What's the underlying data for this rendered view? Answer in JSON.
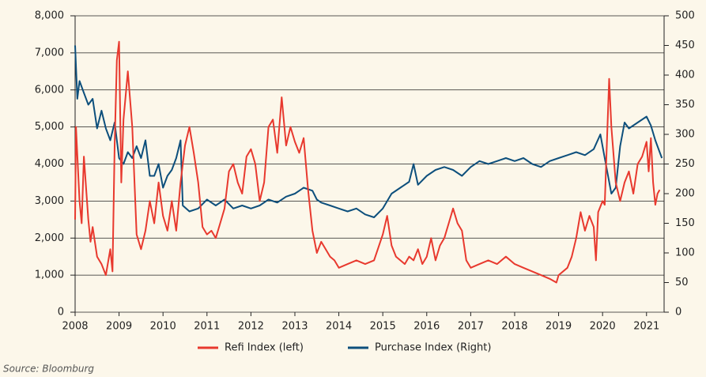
{
  "chart_data": {
    "type": "line",
    "source": "Source: Bloomburg",
    "xlim": [
      2008,
      2021.4
    ],
    "xticks": [
      2008,
      2009,
      2010,
      2011,
      2012,
      2013,
      2014,
      2015,
      2016,
      2017,
      2018,
      2019,
      2020,
      2021
    ],
    "ylim": [
      0,
      8000
    ],
    "yticks": [
      0,
      {
        "value": 1000,
        "label": "1,000"
      },
      {
        "value": 2000,
        "label": "2,000"
      },
      {
        "value": 3000,
        "label": "3,000"
      },
      {
        "value": 4000,
        "label": "4,000"
      },
      {
        "value": 5000,
        "label": "5,000"
      },
      {
        "value": 6000,
        "label": "6,000"
      },
      {
        "value": 7000,
        "label": "7,000"
      },
      {
        "value": 8000,
        "label": "8,000"
      }
    ],
    "y2lim": [
      0,
      500
    ],
    "y2ticks": [
      0,
      50,
      100,
      150,
      200,
      250,
      300,
      350,
      400,
      450,
      500
    ],
    "grid": true,
    "legend": "bottom",
    "series": [
      {
        "name": "Refi Index (left)",
        "color": "#e8392e",
        "x": [
          2008.0,
          2008.02,
          2008.1,
          2008.15,
          2008.2,
          2008.3,
          2008.35,
          2008.4,
          2008.5,
          2008.6,
          2008.7,
          2008.8,
          2008.85,
          2008.9,
          2008.95,
          2009.0,
          2009.05,
          2009.1,
          2009.2,
          2009.3,
          2009.4,
          2009.5,
          2009.6,
          2009.7,
          2009.8,
          2009.9,
          2010.0,
          2010.1,
          2010.2,
          2010.3,
          2010.4,
          2010.5,
          2010.6,
          2010.7,
          2010.8,
          2010.9,
          2011.0,
          2011.1,
          2011.2,
          2011.3,
          2011.4,
          2011.5,
          2011.6,
          2011.7,
          2011.8,
          2011.9,
          2012.0,
          2012.1,
          2012.2,
          2012.3,
          2012.4,
          2012.5,
          2012.6,
          2012.7,
          2012.8,
          2012.9,
          2013.0,
          2013.1,
          2013.2,
          2013.3,
          2013.4,
          2013.5,
          2013.6,
          2013.7,
          2013.8,
          2013.9,
          2014.0,
          2014.2,
          2014.4,
          2014.6,
          2014.8,
          2015.0,
          2015.1,
          2015.2,
          2015.3,
          2015.4,
          2015.5,
          2015.6,
          2015.7,
          2015.8,
          2015.9,
          2016.0,
          2016.1,
          2016.2,
          2016.3,
          2016.4,
          2016.5,
          2016.6,
          2016.7,
          2016.8,
          2016.9,
          2017.0,
          2017.2,
          2017.4,
          2017.6,
          2017.8,
          2018.0,
          2018.2,
          2018.4,
          2018.6,
          2018.8,
          2018.95,
          2019.0,
          2019.2,
          2019.3,
          2019.4,
          2019.5,
          2019.6,
          2019.7,
          2019.8,
          2019.85,
          2019.9,
          2020.0,
          2020.05,
          2020.15,
          2020.2,
          2020.3,
          2020.4,
          2020.5,
          2020.6,
          2020.7,
          2020.8,
          2020.9,
          2021.0,
          2021.05,
          2021.1,
          2021.15,
          2021.2,
          2021.25,
          2021.3
        ],
        "values": [
          2500,
          5000,
          3000,
          2400,
          4200,
          2500,
          1900,
          2300,
          1500,
          1300,
          1000,
          1700,
          1100,
          4500,
          6800,
          7300,
          3500,
          5200,
          6500,
          5000,
          2100,
          1700,
          2200,
          3000,
          2400,
          3500,
          2600,
          2200,
          3000,
          2200,
          3500,
          4500,
          5000,
          4300,
          3500,
          2300,
          2100,
          2200,
          2000,
          2400,
          2800,
          3800,
          4000,
          3500,
          3200,
          4200,
          4400,
          4000,
          3000,
          3500,
          5000,
          5200,
          4300,
          5800,
          4500,
          5000,
          4600,
          4300,
          4700,
          3300,
          2200,
          1600,
          1900,
          1700,
          1500,
          1400,
          1200,
          1300,
          1400,
          1300,
          1400,
          2100,
          2600,
          1800,
          1500,
          1400,
          1300,
          1500,
          1400,
          1700,
          1300,
          1500,
          2000,
          1400,
          1800,
          2000,
          2400,
          2800,
          2400,
          2200,
          1400,
          1200,
          1300,
          1400,
          1300,
          1500,
          1300,
          1200,
          1100,
          1000,
          900,
          800,
          1000,
          1200,
          1500,
          2000,
          2700,
          2200,
          2600,
          2300,
          1400,
          2700,
          3000,
          2900,
          6300,
          5000,
          3500,
          3000,
          3500,
          3800,
          3200,
          4000,
          4200,
          4600,
          3800,
          4700,
          3500,
          2900,
          3200,
          3300
        ]
      },
      {
        "name": "Purchase Index (Right)",
        "color": "#0d4f7c",
        "axis": "y2",
        "x": [
          2008.0,
          2008.05,
          2008.1,
          2008.2,
          2008.3,
          2008.4,
          2008.5,
          2008.6,
          2008.7,
          2008.8,
          2008.9,
          2009.0,
          2009.1,
          2009.2,
          2009.3,
          2009.4,
          2009.5,
          2009.6,
          2009.7,
          2009.8,
          2009.9,
          2010.0,
          2010.1,
          2010.2,
          2010.3,
          2010.4,
          2010.45,
          2010.6,
          2010.8,
          2011.0,
          2011.2,
          2011.4,
          2011.6,
          2011.8,
          2012.0,
          2012.2,
          2012.4,
          2012.6,
          2012.8,
          2013.0,
          2013.2,
          2013.4,
          2013.5,
          2013.6,
          2013.8,
          2014.0,
          2014.2,
          2014.4,
          2014.6,
          2014.8,
          2015.0,
          2015.2,
          2015.4,
          2015.6,
          2015.7,
          2015.8,
          2016.0,
          2016.2,
          2016.4,
          2016.6,
          2016.8,
          2017.0,
          2017.2,
          2017.4,
          2017.6,
          2017.8,
          2018.0,
          2018.2,
          2018.4,
          2018.6,
          2018.8,
          2019.0,
          2019.2,
          2019.4,
          2019.6,
          2019.8,
          2019.95,
          2020.05,
          2020.2,
          2020.3,
          2020.4,
          2020.5,
          2020.6,
          2020.8,
          2021.0,
          2021.1,
          2021.2,
          2021.3,
          2021.35
        ],
        "values": [
          450,
          360,
          390,
          370,
          350,
          360,
          310,
          340,
          310,
          290,
          320,
          260,
          250,
          270,
          260,
          280,
          260,
          290,
          230,
          230,
          250,
          210,
          230,
          240,
          260,
          290,
          180,
          170,
          175,
          190,
          180,
          190,
          175,
          180,
          175,
          180,
          190,
          185,
          195,
          200,
          210,
          205,
          190,
          185,
          180,
          175,
          170,
          175,
          165,
          160,
          175,
          200,
          210,
          220,
          250,
          215,
          230,
          240,
          245,
          240,
          230,
          245,
          255,
          250,
          255,
          260,
          255,
          260,
          250,
          245,
          255,
          260,
          265,
          270,
          265,
          275,
          300,
          260,
          200,
          210,
          280,
          320,
          310,
          320,
          330,
          315,
          290,
          270,
          260
        ]
      }
    ]
  }
}
